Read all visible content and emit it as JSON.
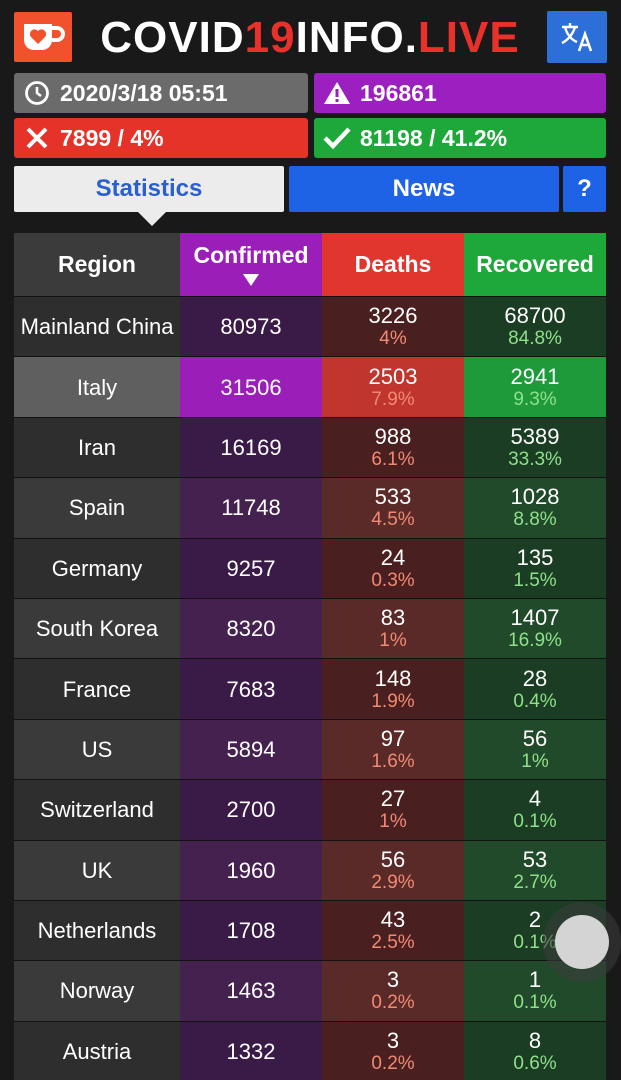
{
  "header": {
    "brand_part1": "COVID",
    "brand_part2": "19",
    "brand_part3": "INFO.",
    "brand_part4": "LIVE"
  },
  "info": {
    "datetime": "2020/3/18 05:51",
    "confirmed_total": "196861",
    "deaths_total": "7899 / 4%",
    "recovered_total": "81198 / 41.2%"
  },
  "tabs": {
    "statistics": "Statistics",
    "news": "News",
    "help": "?"
  },
  "table": {
    "headers": {
      "region": "Region",
      "confirmed": "Confirmed",
      "deaths": "Deaths",
      "recovered": "Recovered"
    },
    "rows": [
      {
        "region": "Mainland China",
        "confirmed": "80973",
        "deaths": "3226",
        "deaths_pct": "4%",
        "recovered": "68700",
        "recovered_pct": "84.8%"
      },
      {
        "region": "Italy",
        "confirmed": "31506",
        "deaths": "2503",
        "deaths_pct": "7.9%",
        "recovered": "2941",
        "recovered_pct": "9.3%"
      },
      {
        "region": "Iran",
        "confirmed": "16169",
        "deaths": "988",
        "deaths_pct": "6.1%",
        "recovered": "5389",
        "recovered_pct": "33.3%"
      },
      {
        "region": "Spain",
        "confirmed": "11748",
        "deaths": "533",
        "deaths_pct": "4.5%",
        "recovered": "1028",
        "recovered_pct": "8.8%"
      },
      {
        "region": "Germany",
        "confirmed": "9257",
        "deaths": "24",
        "deaths_pct": "0.3%",
        "recovered": "135",
        "recovered_pct": "1.5%"
      },
      {
        "region": "South Korea",
        "confirmed": "8320",
        "deaths": "83",
        "deaths_pct": "1%",
        "recovered": "1407",
        "recovered_pct": "16.9%"
      },
      {
        "region": "France",
        "confirmed": "7683",
        "deaths": "148",
        "deaths_pct": "1.9%",
        "recovered": "28",
        "recovered_pct": "0.4%"
      },
      {
        "region": "US",
        "confirmed": "5894",
        "deaths": "97",
        "deaths_pct": "1.6%",
        "recovered": "56",
        "recovered_pct": "1%"
      },
      {
        "region": "Switzerland",
        "confirmed": "2700",
        "deaths": "27",
        "deaths_pct": "1%",
        "recovered": "4",
        "recovered_pct": "0.1%"
      },
      {
        "region": "UK",
        "confirmed": "1960",
        "deaths": "56",
        "deaths_pct": "2.9%",
        "recovered": "53",
        "recovered_pct": "2.7%"
      },
      {
        "region": "Netherlands",
        "confirmed": "1708",
        "deaths": "43",
        "deaths_pct": "2.5%",
        "recovered": "2",
        "recovered_pct": "0.1%"
      },
      {
        "region": "Norway",
        "confirmed": "1463",
        "deaths": "3",
        "deaths_pct": "0.2%",
        "recovered": "1",
        "recovered_pct": "0.1%"
      },
      {
        "region": "Austria",
        "confirmed": "1332",
        "deaths": "3",
        "deaths_pct": "0.2%",
        "recovered": "8",
        "recovered_pct": "0.6%"
      }
    ]
  },
  "icons": {
    "coffee": "coffee-cup-heart-icon",
    "translate": "translate-icon",
    "clock": "clock-icon",
    "warning": "warning-icon",
    "cross": "cross-icon",
    "check": "check-icon",
    "sort": "sort-down-icon"
  },
  "colors": {
    "brand_accent": "#e8312a",
    "confirmed": "#9a1fb9",
    "deaths": "#e0362e",
    "recovered": "#1fa83a",
    "tab_active": "#ececec",
    "tab_inactive": "#1e63e6"
  }
}
